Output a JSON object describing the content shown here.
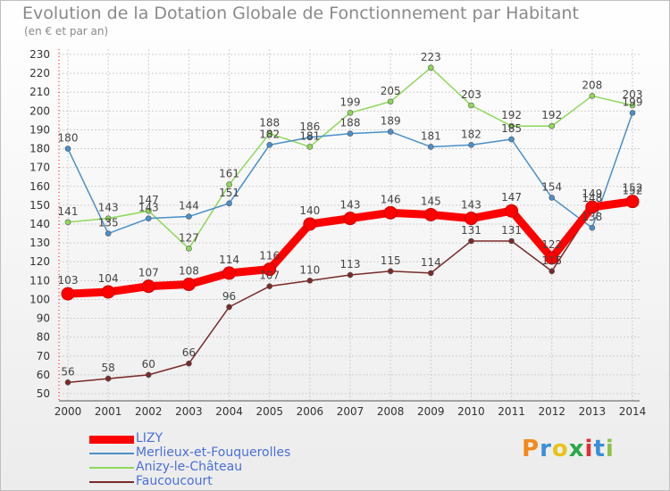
{
  "header": {
    "title": "Evolution de la Dotation Globale de Fonctionnement par Habitant",
    "subtitle": "(en € et par an)"
  },
  "brand": {
    "letters": [
      "P",
      "r",
      "o",
      "x",
      "i",
      "t",
      "i"
    ],
    "colors": [
      "#f08a1c",
      "#3a8fd8",
      "#e9c31b",
      "#2aa84a",
      "#e02f2f",
      "#3a8fd8",
      "#8bc34a"
    ]
  },
  "chart_data": {
    "type": "line",
    "title": "Evolution de la Dotation Globale de Fonctionnement par Habitant",
    "subtitle": "(en € et par an)",
    "xlabel": "",
    "ylabel": "",
    "ylim": [
      50,
      230
    ],
    "yticks": [
      50,
      60,
      70,
      80,
      90,
      100,
      110,
      120,
      130,
      140,
      150,
      160,
      170,
      180,
      190,
      200,
      210,
      220,
      230
    ],
    "grid": true,
    "legend_position": "bottom-left",
    "x": [
      "2000",
      "2001",
      "2002",
      "2003",
      "2004",
      "2005",
      "2006",
      "2007",
      "2008",
      "2009",
      "2010",
      "2011",
      "2012",
      "2013",
      "2014"
    ],
    "series": [
      {
        "name": "LIZY",
        "color": "#ff0000",
        "values": [
          103,
          104,
          107,
          108,
          114,
          116,
          140,
          143,
          146,
          145,
          143,
          147,
          122,
          149,
          152
        ]
      },
      {
        "name": "Merlieux-et-Fouquerolles",
        "color": "#4a8fc8",
        "values": [
          180,
          135,
          143,
          144,
          151,
          182,
          186,
          188,
          189,
          181,
          182,
          185,
          154,
          138,
          199
        ]
      },
      {
        "name": "Anizy-le-Château",
        "color": "#8ed85a",
        "values": [
          141,
          143,
          147,
          127,
          161,
          188,
          181,
          199,
          205,
          223,
          203,
          192,
          192,
          208,
          203
        ]
      },
      {
        "name": "Faucoucourt",
        "color": "#7a2a2a",
        "values": [
          56,
          58,
          60,
          66,
          96,
          107,
          110,
          113,
          115,
          114,
          131,
          131,
          115,
          148,
          152
        ]
      }
    ]
  }
}
